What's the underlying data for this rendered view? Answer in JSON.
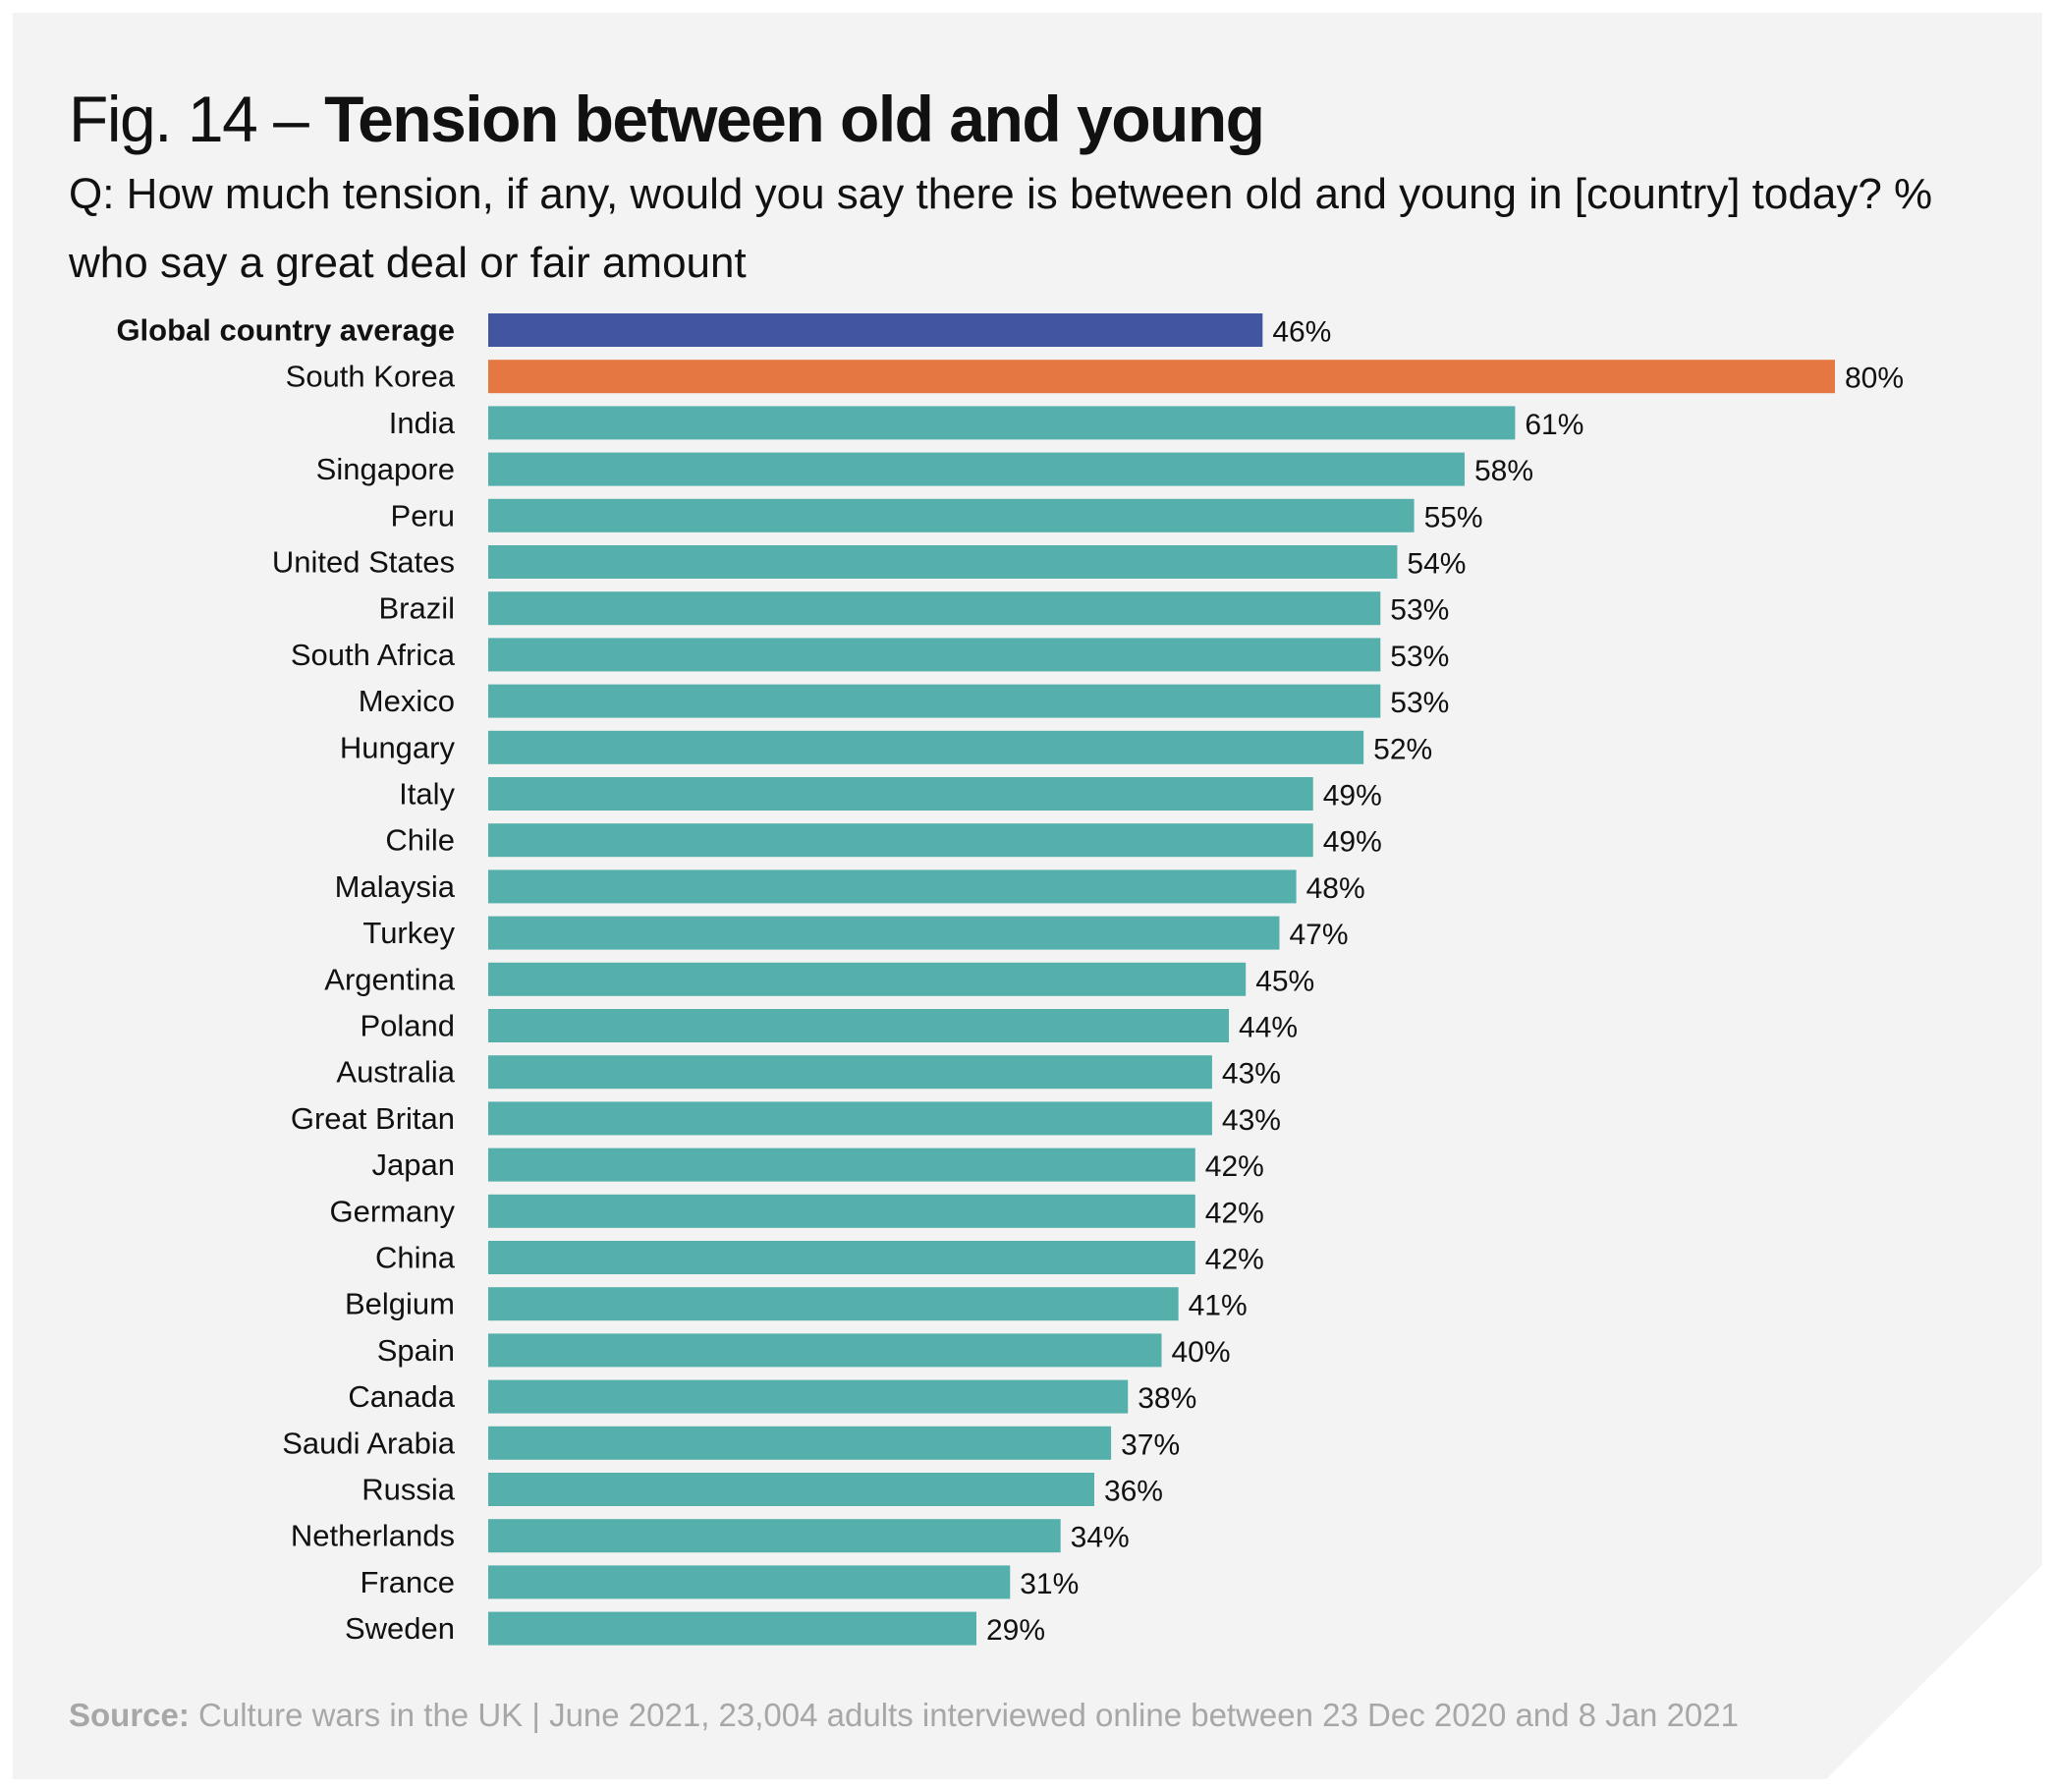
{
  "title": {
    "prefix": "Fig. 14 – ",
    "main": "Tension between old and young"
  },
  "subtitle": "Q: How much tension, if any, would you say there is between old and young in [country] today? % who say a great deal or fair amount",
  "source": {
    "label": "Source:",
    "text": " Culture wars in the UK | June 2021, 23,004 adults interviewed online between 23 Dec 2020 and 8 Jan 2021"
  },
  "colors": {
    "average": "#4255a0",
    "highlight": "#e57842",
    "default": "#55b0ab"
  },
  "chart_data": {
    "type": "bar",
    "orientation": "horizontal",
    "value_suffix": "%",
    "xlim": [
      0,
      80
    ],
    "categories": [
      "Global country average",
      "South Korea",
      "India",
      "Singapore",
      "Peru",
      "United States",
      "Brazil",
      "South Africa",
      "Mexico",
      "Hungary",
      "Italy",
      "Chile",
      "Malaysia",
      "Turkey",
      "Argentina",
      "Poland",
      "Australia",
      "Great Britan",
      "Japan",
      "Germany",
      "China",
      "Belgium",
      "Spain",
      "Canada",
      "Saudi Arabia",
      "Russia",
      "Netherlands",
      "France",
      "Sweden"
    ],
    "values": [
      46,
      80,
      61,
      58,
      55,
      54,
      53,
      53,
      53,
      52,
      49,
      49,
      48,
      47,
      45,
      44,
      43,
      43,
      42,
      42,
      42,
      41,
      40,
      38,
      37,
      36,
      34,
      31,
      29
    ],
    "styles": [
      "average",
      "highlight",
      "default",
      "default",
      "default",
      "default",
      "default",
      "default",
      "default",
      "default",
      "default",
      "default",
      "default",
      "default",
      "default",
      "default",
      "default",
      "default",
      "default",
      "default",
      "default",
      "default",
      "default",
      "default",
      "default",
      "default",
      "default",
      "default",
      "default"
    ]
  }
}
